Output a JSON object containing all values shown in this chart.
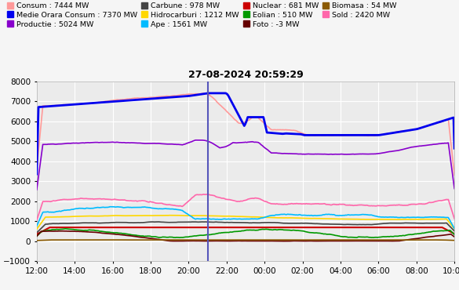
{
  "title": "27-08-2024 20:59:29",
  "ylim": [
    -1000,
    8000
  ],
  "yticks": [
    -1000,
    0,
    1000,
    2000,
    3000,
    4000,
    5000,
    6000,
    7000,
    8000
  ],
  "xtick_labels": [
    "12:00",
    "14:00",
    "16:00",
    "18:00",
    "20:00",
    "22:00",
    "00:00",
    "02:00",
    "04:00",
    "06:00",
    "08:00",
    "10:00"
  ],
  "legend": [
    {
      "label": "Consum : 7444 MW",
      "color": "#FF9999",
      "lw": 1.2
    },
    {
      "label": "Medie Orara Consum : 7370 MW",
      "color": "#0000EE",
      "lw": 2.0
    },
    {
      "label": "Productie : 5024 MW",
      "color": "#8800CC",
      "lw": 1.2
    },
    {
      "label": "Carbune : 978 MW",
      "color": "#444444",
      "lw": 1.2
    },
    {
      "label": "Hidrocarburi : 1212 MW",
      "color": "#FFD700",
      "lw": 1.2
    },
    {
      "label": "Ape : 1561 MW",
      "color": "#00BBFF",
      "lw": 1.2
    },
    {
      "label": "Nuclear : 681 MW",
      "color": "#CC0000",
      "lw": 1.5
    },
    {
      "label": "Eolian : 510 MW",
      "color": "#009900",
      "lw": 1.2
    },
    {
      "label": "Foto : -3 MW",
      "color": "#660000",
      "lw": 1.2
    },
    {
      "label": "Biomasa : 54 MW",
      "color": "#8B5A00",
      "lw": 1.2
    },
    {
      "label": "Sold : 2420 MW",
      "color": "#FF66AA",
      "lw": 1.2
    }
  ],
  "vline_color": "#5555BB",
  "vline_lw": 1.5,
  "background_color": "#EBEBEB",
  "fig_facecolor": "#F5F5F5",
  "grid_color": "#FFFFFF",
  "title_fontsize": 9,
  "tick_fontsize": 7.5,
  "legend_fontsize": 6.8
}
